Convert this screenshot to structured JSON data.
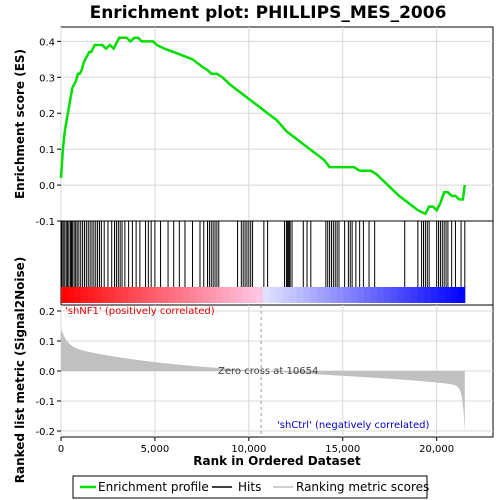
{
  "chart_data": {
    "type": "line",
    "title": "Enrichment plot: PHILLIPS_MES_2006",
    "xlabel": "Rank in Ordered Dataset",
    "ylabel_top": "Enrichment score (ES)",
    "ylabel_bottom": "Ranked list metric (Signal2Noise)",
    "xlim": [
      0,
      23000
    ],
    "x_ticks": [
      0,
      5000,
      10000,
      15000,
      20000
    ],
    "x_tick_labels": [
      "0",
      "5,000",
      "10,000",
      "15,000",
      "20,000"
    ],
    "es_ylim": [
      -0.1,
      0.44
    ],
    "es_ticks": [
      -0.1,
      0.0,
      0.1,
      0.2,
      0.3,
      0.4
    ],
    "es_tick_labels": [
      "-0.1",
      "0.0",
      "0.1",
      "0.2",
      "0.3",
      "0.4"
    ],
    "metric_ylim": [
      -0.22,
      0.22
    ],
    "metric_ticks": [
      -0.2,
      -0.1,
      0.0,
      0.1,
      0.2
    ],
    "metric_tick_labels": [
      "-0.2",
      "-0.1",
      "0.0",
      "0.1",
      "0.2"
    ],
    "n_genes": 21500,
    "zero_cross": 10654,
    "zero_cross_label": "Zero cross at 10654",
    "pos_label": "'shNF1' (positively correlated)",
    "neg_label": "'shCtrl' (negatively correlated)",
    "enrichment_profile": {
      "name": "Enrichment profile",
      "x": [
        0,
        100,
        200,
        300,
        400,
        500,
        600,
        700,
        800,
        900,
        1000,
        1100,
        1200,
        1300,
        1400,
        1500,
        1600,
        1700,
        1800,
        1900,
        2000,
        2200,
        2400,
        2600,
        2800,
        3000,
        3100,
        3300,
        3500,
        3700,
        3900,
        4100,
        4300,
        4500,
        4700,
        4900,
        5100,
        5500,
        6000,
        6500,
        7000,
        7500,
        7800,
        8000,
        8300,
        8600,
        9000,
        9500,
        10000,
        10500,
        11000,
        11500,
        12000,
        12500,
        13000,
        13500,
        14000,
        14300,
        14600,
        15000,
        15300,
        15600,
        15900,
        16200,
        16500,
        16800,
        17200,
        17600,
        18000,
        18500,
        19000,
        19400,
        19600,
        19800,
        20000,
        20200,
        20400,
        20600,
        20800,
        21000,
        21200,
        21400,
        21500
      ],
      "y": [
        0.02,
        0.1,
        0.15,
        0.18,
        0.21,
        0.24,
        0.27,
        0.28,
        0.29,
        0.31,
        0.31,
        0.32,
        0.34,
        0.35,
        0.36,
        0.37,
        0.37,
        0.38,
        0.39,
        0.39,
        0.39,
        0.39,
        0.38,
        0.39,
        0.38,
        0.4,
        0.41,
        0.41,
        0.41,
        0.4,
        0.41,
        0.41,
        0.4,
        0.4,
        0.4,
        0.4,
        0.39,
        0.38,
        0.37,
        0.36,
        0.35,
        0.33,
        0.32,
        0.31,
        0.31,
        0.3,
        0.28,
        0.26,
        0.24,
        0.22,
        0.2,
        0.18,
        0.15,
        0.13,
        0.11,
        0.09,
        0.07,
        0.05,
        0.05,
        0.05,
        0.05,
        0.05,
        0.04,
        0.04,
        0.04,
        0.03,
        0.01,
        -0.01,
        -0.03,
        -0.05,
        -0.07,
        -0.08,
        -0.06,
        -0.06,
        -0.07,
        -0.05,
        -0.02,
        -0.02,
        -0.03,
        -0.03,
        -0.04,
        -0.04,
        0.0
      ]
    },
    "hits_label": "Hits",
    "metric_label": "Ranking metric scores",
    "hits": [
      50,
      120,
      200,
      280,
      350,
      420,
      500,
      560,
      620,
      700,
      780,
      860,
      950,
      1050,
      1150,
      1250,
      1350,
      1450,
      1550,
      1650,
      1750,
      1850,
      1950,
      2050,
      2150,
      2300,
      2500,
      2700,
      2850,
      2950,
      3050,
      3150,
      3250,
      3400,
      3600,
      3800,
      4000,
      4200,
      4500,
      4650,
      4800,
      5000,
      5300,
      5700,
      6000,
      6300,
      6600,
      7000,
      7400,
      7600,
      7800,
      7900,
      8000,
      8100,
      8200,
      8300,
      8400,
      9400,
      9600,
      9700,
      9800,
      9900,
      10000,
      10100,
      10200,
      10800,
      11000,
      11900,
      12000,
      12050,
      12100,
      12150,
      12200,
      12300,
      12900,
      13100,
      13300,
      14100,
      14200,
      14300,
      14400,
      14500,
      14600,
      14700,
      14800,
      15100,
      15300,
      15400,
      15500,
      15700,
      15900,
      16100,
      16400,
      16700,
      18300,
      19000,
      19200,
      19300,
      19400,
      19500,
      19600,
      20000,
      20100,
      20200,
      20300,
      20400,
      20500,
      20600,
      20800,
      21000,
      21300,
      21500
    ],
    "legend_placement": "bottom",
    "colors": {
      "profile": "#00dd00",
      "hits": "#000000",
      "metric": "#c0c0c0",
      "pos_label": "#dd0000",
      "neg_label": "#0000cc",
      "zero_label": "#404040",
      "grid": "#d8d8d8"
    }
  }
}
